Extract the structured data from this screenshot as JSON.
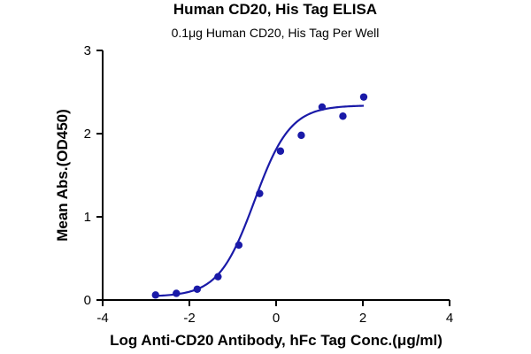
{
  "chart_data": {
    "type": "scatter",
    "title": "Human CD20, His Tag ELISA",
    "subtitle": "0.1μg Human CD20, His Tag Per Well",
    "xlabel": "Log Anti-CD20 Antibody, hFc Tag Conc.(μg/ml)",
    "ylabel": "Mean Abs.(OD450)",
    "xlim": [
      -4,
      4
    ],
    "ylim": [
      0,
      3
    ],
    "xticks": [
      -4,
      -2,
      0,
      2,
      4
    ],
    "yticks": [
      0,
      1,
      2,
      3
    ],
    "grid": false,
    "color": "#1a1aa8",
    "series": [
      {
        "x": [
          -2.78,
          -2.3,
          -1.82,
          -1.34,
          -0.86,
          -0.38,
          0.1,
          0.58,
          1.06,
          1.54,
          2.02
        ],
        "y": [
          0.06,
          0.08,
          0.13,
          0.28,
          0.66,
          1.28,
          1.79,
          1.98,
          2.32,
          2.21,
          2.44
        ]
      }
    ],
    "fit": {
      "type": "4PL",
      "bottom": 0.04,
      "top": 2.34,
      "log_ec50": -0.5,
      "hill_slope": 1.05
    }
  }
}
